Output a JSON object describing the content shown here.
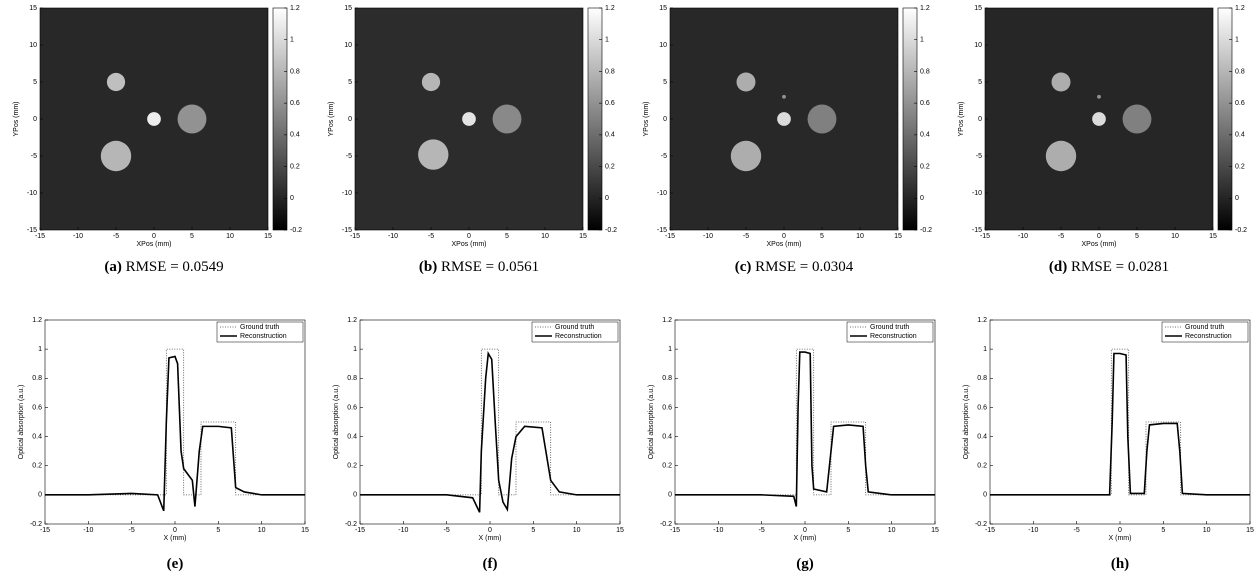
{
  "chart_data": [
    {
      "type": "image",
      "xlabel": "XPos (mm)",
      "ylabel": "YPos (mm)",
      "xlim": [
        -15,
        15
      ],
      "ylim": [
        -15,
        15
      ],
      "xticks": [
        -15,
        -10,
        -5,
        0,
        5,
        10,
        15
      ],
      "yticks": [
        -15,
        -10,
        -5,
        0,
        5,
        10,
        15
      ],
      "clim": [
        -0.2,
        1.2
      ],
      "cticks": [
        -0.2,
        0,
        0.2,
        0.4,
        0.6,
        0.8,
        1,
        1.2
      ],
      "background": 0.02,
      "disks": [
        {
          "x": -5,
          "y": 5,
          "r": 1.2,
          "value": 0.85
        },
        {
          "x": 0,
          "y": 0,
          "r": 0.9,
          "value": 1.1
        },
        {
          "x": 5,
          "y": 0,
          "r": 1.9,
          "value": 0.6
        },
        {
          "x": -5,
          "y": -5,
          "r": 2,
          "value": 0.8
        }
      ],
      "caption_label": "(a)",
      "caption": "RMSE = 0.0549"
    },
    {
      "type": "image",
      "xlabel": "XPos (mm)",
      "ylabel": "YPos (mm)",
      "xlim": [
        -15,
        15
      ],
      "ylim": [
        -15,
        15
      ],
      "xticks": [
        -15,
        -10,
        -5,
        0,
        5,
        10,
        15
      ],
      "yticks": [
        -15,
        -10,
        -5,
        0,
        5,
        10,
        15
      ],
      "clim": [
        -0.2,
        1.2
      ],
      "cticks": [
        -0.2,
        0,
        0.2,
        0.4,
        0.6,
        0.8,
        1,
        1.2
      ],
      "background": 0.04,
      "disks": [
        {
          "x": -5,
          "y": 5,
          "r": 1.2,
          "value": 0.8
        },
        {
          "x": 0,
          "y": 0,
          "r": 0.9,
          "value": 1.05
        },
        {
          "x": 5,
          "y": 0,
          "r": 1.9,
          "value": 0.55
        },
        {
          "x": -4.7,
          "y": -4.8,
          "r": 2,
          "value": 0.8
        }
      ],
      "caption_label": "(b)",
      "caption": "RMSE = 0.0561"
    },
    {
      "type": "image",
      "xlabel": "XPos (mm)",
      "ylabel": "YPos (mm)",
      "xlim": [
        -15,
        15
      ],
      "ylim": [
        -15,
        15
      ],
      "xticks": [
        -15,
        -10,
        -5,
        0,
        5,
        10,
        15
      ],
      "yticks": [
        -15,
        -10,
        -5,
        0,
        5,
        10,
        15
      ],
      "clim": [
        -0.2,
        1.2
      ],
      "cticks": [
        -0.2,
        0,
        0.2,
        0.4,
        0.6,
        0.8,
        1,
        1.2
      ],
      "background": 0.02,
      "disks": [
        {
          "x": -5,
          "y": 5,
          "r": 1.25,
          "value": 0.75
        },
        {
          "x": 0,
          "y": 3,
          "r": 0.25,
          "value": 0.6
        },
        {
          "x": 0,
          "y": 0,
          "r": 0.9,
          "value": 1
        },
        {
          "x": 5,
          "y": 0,
          "r": 1.9,
          "value": 0.5
        },
        {
          "x": -5,
          "y": -5,
          "r": 2,
          "value": 0.75
        }
      ],
      "caption_label": "(c)",
      "caption": "RMSE = 0.0304"
    },
    {
      "type": "image",
      "xlabel": "XPos (mm)",
      "ylabel": "YPos (mm)",
      "xlim": [
        -15,
        15
      ],
      "ylim": [
        -15,
        15
      ],
      "xticks": [
        -15,
        -10,
        -5,
        0,
        5,
        10,
        15
      ],
      "yticks": [
        -15,
        -10,
        -5,
        0,
        5,
        10,
        15
      ],
      "clim": [
        -0.2,
        1.2
      ],
      "cticks": [
        -0.2,
        0,
        0.2,
        0.4,
        0.6,
        0.8,
        1,
        1.2
      ],
      "background": 0.01,
      "disks": [
        {
          "x": -5,
          "y": 5,
          "r": 1.25,
          "value": 0.75
        },
        {
          "x": 0,
          "y": 3,
          "r": 0.25,
          "value": 0.6
        },
        {
          "x": 0,
          "y": 0,
          "r": 0.9,
          "value": 1
        },
        {
          "x": 5,
          "y": 0,
          "r": 1.9,
          "value": 0.5
        },
        {
          "x": -5,
          "y": -5,
          "r": 2,
          "value": 0.75
        }
      ],
      "caption_label": "(d)",
      "caption": "RMSE = 0.0281"
    },
    {
      "type": "line",
      "xlabel": "X (mm)",
      "ylabel": "Optical absorption (a.u.)",
      "xlim": [
        -15,
        15
      ],
      "ylim": [
        -0.2,
        1.2
      ],
      "xticks": [
        -15,
        -10,
        -5,
        0,
        5,
        10,
        15
      ],
      "yticks": [
        -0.2,
        0,
        0.2,
        0.4,
        0.6,
        0.8,
        1,
        1.2
      ],
      "series": [
        {
          "name": "Ground truth",
          "color": "#444444",
          "linestyle": "dotted",
          "x": [
            -15,
            -1,
            -1,
            1,
            1,
            3,
            3,
            7,
            7,
            15
          ],
          "values": [
            0,
            0,
            1,
            1,
            0,
            0,
            0.5,
            0.5,
            0,
            0
          ]
        },
        {
          "name": "Reconstruction",
          "color": "#000000",
          "linestyle": "solid",
          "x": [
            -15,
            -10,
            -5,
            -2,
            -1.3,
            -1.0,
            -0.7,
            0,
            0.3,
            0.7,
            1,
            2,
            2.3,
            2.8,
            3.2,
            5,
            6.5,
            7,
            8,
            10,
            15
          ],
          "values": [
            0,
            0,
            0.01,
            0,
            -0.11,
            0.5,
            0.94,
            0.95,
            0.9,
            0.3,
            0.18,
            0.1,
            -0.08,
            0.3,
            0.47,
            0.47,
            0.46,
            0.05,
            0.02,
            0,
            0
          ]
        }
      ],
      "caption_label": "(e)"
    },
    {
      "type": "line",
      "xlabel": "X (mm)",
      "ylabel": "Optical absorption (a.u.)",
      "xlim": [
        -15,
        15
      ],
      "ylim": [
        -0.2,
        1.2
      ],
      "xticks": [
        -15,
        -10,
        -5,
        0,
        5,
        10,
        15
      ],
      "yticks": [
        -0.2,
        0,
        0.2,
        0.4,
        0.6,
        0.8,
        1,
        1.2
      ],
      "series": [
        {
          "name": "Ground truth",
          "color": "#444444",
          "linestyle": "dotted",
          "x": [
            -15,
            -1,
            -1,
            1,
            1,
            3,
            3,
            7,
            7,
            15
          ],
          "values": [
            0,
            0,
            1,
            1,
            0,
            0,
            0.5,
            0.5,
            0,
            0
          ]
        },
        {
          "name": "Reconstruction",
          "color": "#000000",
          "linestyle": "solid",
          "x": [
            -15,
            -10,
            -5,
            -2,
            -1.2,
            -1,
            -0.5,
            -0.2,
            0.2,
            0.6,
            1,
            1.5,
            2,
            2.5,
            3,
            4,
            6,
            7,
            8,
            10,
            15
          ],
          "values": [
            0,
            0,
            0,
            -0.02,
            -0.12,
            0.3,
            0.8,
            0.97,
            0.93,
            0.5,
            0.1,
            -0.05,
            -0.1,
            0.25,
            0.4,
            0.47,
            0.46,
            0.1,
            0.02,
            0,
            0
          ]
        }
      ],
      "caption_label": "(f)"
    },
    {
      "type": "line",
      "xlabel": "X (mm)",
      "ylabel": "Optical absorption (a.u.)",
      "xlim": [
        -15,
        15
      ],
      "ylim": [
        -0.2,
        1.2
      ],
      "xticks": [
        -15,
        -10,
        -5,
        0,
        5,
        10,
        15
      ],
      "yticks": [
        -0.2,
        0,
        0.2,
        0.4,
        0.6,
        0.8,
        1,
        1.2
      ],
      "series": [
        {
          "name": "Ground truth",
          "color": "#444444",
          "linestyle": "dotted",
          "x": [
            -15,
            -1,
            -1,
            1,
            1,
            3,
            3,
            7,
            7,
            15
          ],
          "values": [
            0,
            0,
            1,
            1,
            0,
            0,
            0.5,
            0.5,
            0,
            0
          ]
        },
        {
          "name": "Reconstruction",
          "color": "#000000",
          "linestyle": "solid",
          "x": [
            -15,
            -5,
            -1.3,
            -1,
            -0.8,
            -0.6,
            0,
            0.6,
            0.8,
            1,
            2.5,
            3,
            3.3,
            5,
            6.7,
            7,
            7.3,
            10,
            15
          ],
          "values": [
            0,
            0,
            -0.01,
            -0.08,
            0.6,
            0.98,
            0.98,
            0.97,
            0.2,
            0.04,
            0.02,
            0.3,
            0.47,
            0.48,
            0.47,
            0.2,
            0.02,
            0,
            0
          ]
        }
      ],
      "caption_label": "(g)"
    },
    {
      "type": "line",
      "xlabel": "X (mm)",
      "ylabel": "Optical absorption (a.u.)",
      "xlim": [
        -15,
        15
      ],
      "ylim": [
        -0.2,
        1.2
      ],
      "xticks": [
        -15,
        -10,
        -5,
        0,
        5,
        10,
        15
      ],
      "yticks": [
        -0.2,
        0,
        0.2,
        0.4,
        0.6,
        0.8,
        1,
        1.2
      ],
      "series": [
        {
          "name": "Ground truth",
          "color": "#444444",
          "linestyle": "dotted",
          "x": [
            -15,
            -1,
            -1,
            1,
            1,
            3,
            3,
            7,
            7,
            15
          ],
          "values": [
            0,
            0,
            1,
            1,
            0,
            0,
            0.5,
            0.5,
            0,
            0
          ]
        },
        {
          "name": "Reconstruction",
          "color": "#000000",
          "linestyle": "solid",
          "x": [
            -15,
            -5,
            -1.2,
            -0.9,
            -0.7,
            0,
            0.7,
            0.9,
            1.2,
            2.8,
            3.1,
            3.4,
            5,
            6.6,
            6.9,
            7.2,
            10,
            15
          ],
          "values": [
            0,
            0,
            0,
            0.5,
            0.97,
            0.97,
            0.96,
            0.4,
            0.01,
            0.01,
            0.3,
            0.48,
            0.49,
            0.49,
            0.3,
            0.01,
            0,
            0
          ]
        }
      ],
      "caption_label": "(h)"
    }
  ]
}
